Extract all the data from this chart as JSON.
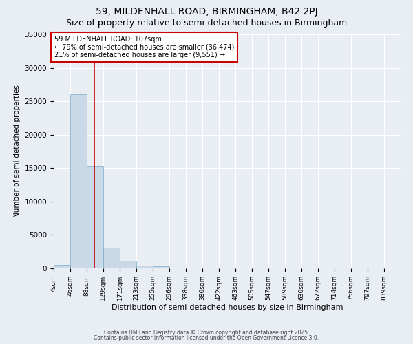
{
  "title": "59, MILDENHALL ROAD, BIRMINGHAM, B42 2PJ",
  "subtitle": "Size of property relative to semi-detached houses in Birmingham",
  "xlabel": "Distribution of semi-detached houses by size in Birmingham",
  "ylabel": "Number of semi-detached properties",
  "bin_labels": [
    "4sqm",
    "46sqm",
    "88sqm",
    "129sqm",
    "171sqm",
    "213sqm",
    "255sqm",
    "296sqm",
    "338sqm",
    "380sqm",
    "422sqm",
    "463sqm",
    "505sqm",
    "547sqm",
    "589sqm",
    "630sqm",
    "672sqm",
    "714sqm",
    "756sqm",
    "797sqm",
    "839sqm"
  ],
  "bin_edges": [
    4,
    46,
    88,
    129,
    171,
    213,
    255,
    296,
    338,
    380,
    422,
    463,
    505,
    547,
    589,
    630,
    672,
    714,
    756,
    797,
    839,
    881
  ],
  "bar_heights": [
    500,
    26000,
    15200,
    3100,
    1100,
    450,
    300,
    0,
    0,
    0,
    0,
    0,
    0,
    0,
    0,
    0,
    0,
    0,
    0,
    0,
    0
  ],
  "bar_color": "#c9d9e8",
  "bar_edgecolor": "#7aaac8",
  "property_sqm": 107,
  "red_line_color": "#cc0000",
  "annotation_text": "59 MILDENHALL ROAD: 107sqm\n← 79% of semi-detached houses are smaller (36,474)\n21% of semi-detached houses are larger (9,551) →",
  "annotation_box_color": "#ffffff",
  "annotation_box_edgecolor": "#cc0000",
  "ylim": [
    0,
    35000
  ],
  "background_color": "#e8eef4",
  "footer_line1": "Contains HM Land Registry data © Crown copyright and database right 2025.",
  "footer_line2": "Contains public sector information licensed under the Open Government Licence 3.0.",
  "title_fontsize": 10,
  "subtitle_fontsize": 9
}
